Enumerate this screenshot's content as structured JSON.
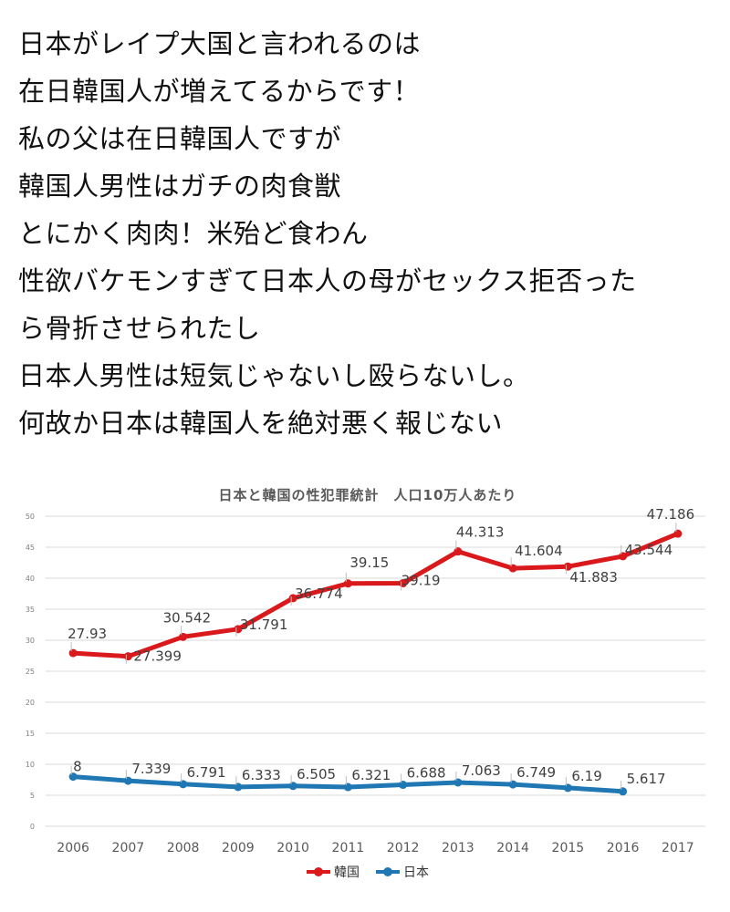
{
  "post": {
    "lines": [
      "日本がレイプ大国と言われるのは",
      "在日韓国人が増えてるからです！",
      "私の父は在日韓国人ですが",
      "韓国人男性はガチの肉食獣",
      "とにかく肉肉！米殆ど食わん",
      "性欲バケモンすぎて日本人の母がセックス拒否った",
      "ら骨折させられたし",
      "日本人男性は短気じゃないし殴らないし。",
      "何故か日本は韓国人を絶対悪く報じない"
    ]
  },
  "chart_data": {
    "type": "line",
    "title": "日本と韓国の性犯罪統計　人口10万人あたり",
    "categories": [
      "2006",
      "2007",
      "2008",
      "2009",
      "2010",
      "2011",
      "2012",
      "2013",
      "2014",
      "2015",
      "2016",
      "2017"
    ],
    "ylim": [
      0,
      50
    ],
    "yticks": [
      0,
      5,
      10,
      15,
      20,
      25,
      30,
      35,
      40,
      45,
      50
    ],
    "grid": true,
    "legend_position": "bottom",
    "series": [
      {
        "name": "韓国",
        "color": "#d9191c",
        "values": [
          27.93,
          27.399,
          30.542,
          31.791,
          36.774,
          39.15,
          39.19,
          44.313,
          41.604,
          41.883,
          43.544,
          47.186
        ],
        "labels": [
          "27.93",
          "27.399",
          "30.542",
          "31.791",
          "36.774",
          "39.15",
          "39.19",
          "44.313",
          "41.604",
          "41.883",
          "43.544",
          "47.186"
        ]
      },
      {
        "name": "日本",
        "color": "#1f77b4",
        "values": [
          8,
          7.339,
          6.791,
          6.333,
          6.505,
          6.321,
          6.688,
          7.063,
          6.749,
          6.19,
          5.617,
          null
        ],
        "labels": [
          "8",
          "7.339",
          "6.791",
          "6.333",
          "6.505",
          "6.321",
          "6.688",
          "7.063",
          "6.749",
          "6.19",
          "5.617",
          ""
        ]
      }
    ]
  }
}
